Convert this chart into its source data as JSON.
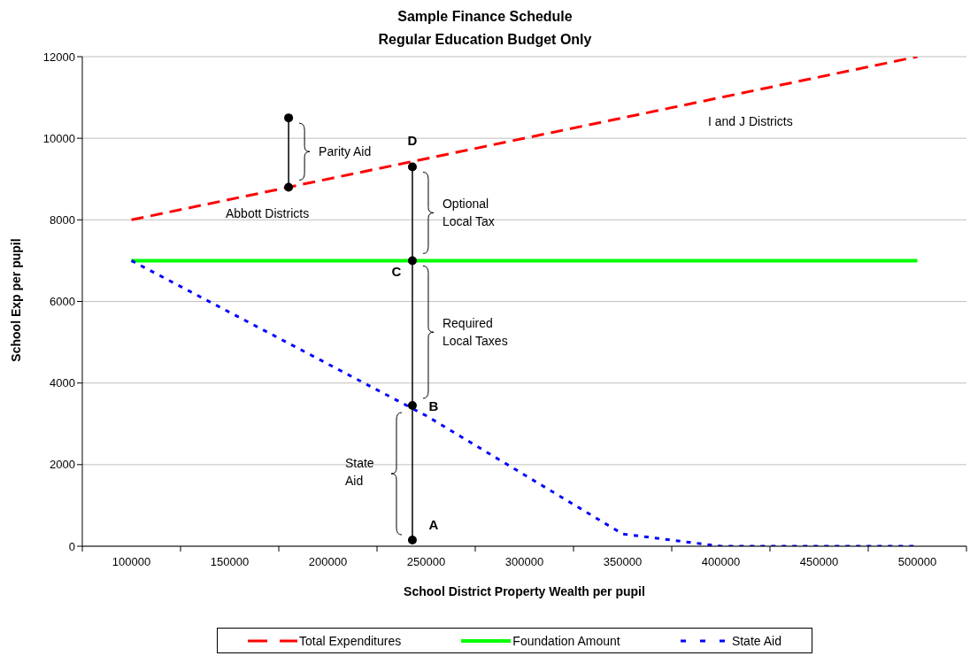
{
  "chart_data": {
    "type": "line",
    "title": "Sample Finance Schedule",
    "subtitle": "Regular Education Budget Only",
    "xlabel": "School District Property Wealth per pupil",
    "ylabel": "School Exp per pupil",
    "xlim": [
      75000,
      525000
    ],
    "xticks": [
      {
        "value": 75000,
        "label": null
      },
      100000,
      {
        "value": 125000,
        "label": null
      },
      150000,
      {
        "value": 175000,
        "label": null
      },
      200000,
      {
        "value": 225000,
        "label": null
      },
      250000,
      {
        "value": 275000,
        "label": null
      },
      300000,
      {
        "value": 325000,
        "label": null
      },
      350000,
      {
        "value": 375000,
        "label": null
      },
      400000,
      {
        "value": 425000,
        "label": null
      },
      450000,
      {
        "value": 475000,
        "label": null
      },
      500000,
      {
        "value": 525000,
        "label": null
      }
    ],
    "ylim": [
      0,
      12000
    ],
    "yticks": [
      0,
      2000,
      4000,
      6000,
      8000,
      10000,
      12000
    ],
    "grid": "y",
    "legend": "bottom",
    "series": [
      {
        "name": "Total Expenditures",
        "color": "#ff0000",
        "line_style": "dashed",
        "marker": "none",
        "x": [
          100000,
          500000
        ],
        "values": [
          8000,
          12000
        ]
      },
      {
        "name": "Foundation Amount",
        "color": "#00ff00",
        "line_style": "solid",
        "marker": "none",
        "x": [
          100000,
          500000
        ],
        "values": [
          7000,
          7000
        ]
      },
      {
        "name": "State Aid",
        "color": "#0000ff",
        "line_style": "dotted",
        "marker": "none",
        "x": [
          100000,
          250000,
          350000,
          400000,
          500000
        ],
        "values": [
          7000,
          3200,
          300,
          0,
          0
        ]
      },
      {
        "color": "#000000",
        "line_style": "solid",
        "marker": "circle",
        "x": [
          180000,
          180000
        ],
        "values": [
          8800,
          10500
        ]
      },
      {
        "color": "#000000",
        "line_style": "solid",
        "marker": "circle",
        "x": [
          243000,
          243000,
          243000,
          243000
        ],
        "values": [
          150,
          3450,
          7000,
          9300
        ],
        "value_labels": [
          "A",
          "B",
          "C",
          "D"
        ]
      }
    ],
    "annotations": [
      "Parity Aid",
      "Optional\nLocal Tax",
      "Required\nLocal Taxes",
      "State\nAid",
      "Abbott Districts",
      "I and J Districts"
    ]
  }
}
